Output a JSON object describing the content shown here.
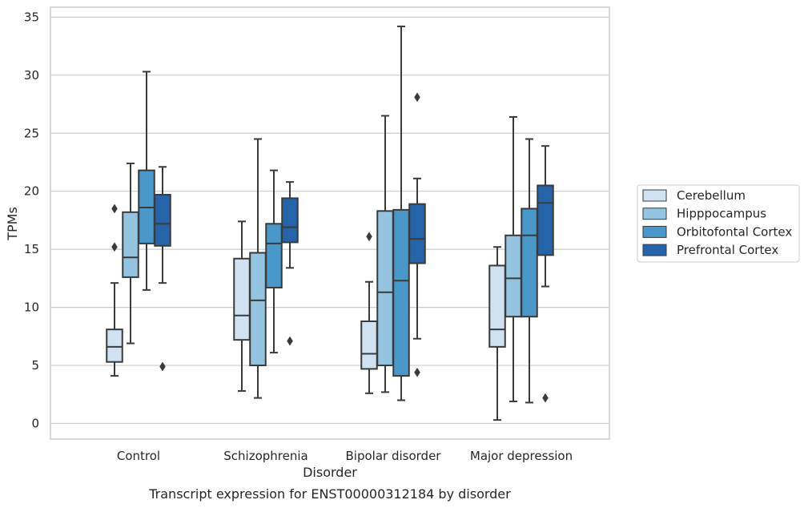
{
  "caption": "Transcript expression for ENST00000312184 by disorder",
  "colors": {
    "box_edge": "#3a3a3a",
    "grid": "#cccccc",
    "frame": "#cccccc",
    "series": [
      "#d0e1f2",
      "#94c4df",
      "#4a98c9",
      "#2664a9"
    ]
  },
  "chart_data": {
    "type": "box",
    "title": "",
    "xlabel": "Disorder",
    "ylabel": "TPMs",
    "ylim": [
      -1.3,
      36
    ],
    "yticks": [
      0,
      5,
      10,
      15,
      20,
      25,
      30,
      35
    ],
    "grid": "horizontal",
    "legend_position": "right",
    "categories": [
      "Control",
      "Schizophrenia",
      "Bipolar disorder",
      "Major depression"
    ],
    "series": [
      {
        "name": "Cerebellum",
        "boxes": [
          {
            "whisker_low": 4.1,
            "q1": 5.3,
            "median": 6.6,
            "q3": 8.1,
            "whisker_high": 12.1,
            "outliers": [
              15.2,
              18.5
            ]
          },
          {
            "whisker_low": 2.8,
            "q1": 7.2,
            "median": 9.3,
            "q3": 14.2,
            "whisker_high": 17.4,
            "outliers": []
          },
          {
            "whisker_low": 2.6,
            "q1": 4.7,
            "median": 6.0,
            "q3": 8.8,
            "whisker_high": 12.2,
            "outliers": [
              16.1
            ]
          },
          {
            "whisker_low": 0.3,
            "q1": 6.6,
            "median": 8.1,
            "q3": 13.6,
            "whisker_high": 15.2,
            "outliers": []
          }
        ]
      },
      {
        "name": "Hipppocampus",
        "boxes": [
          {
            "whisker_low": 6.9,
            "q1": 12.6,
            "median": 14.3,
            "q3": 18.2,
            "whisker_high": 22.4,
            "outliers": []
          },
          {
            "whisker_low": 2.2,
            "q1": 5.0,
            "median": 10.6,
            "q3": 14.7,
            "whisker_high": 24.5,
            "outliers": []
          },
          {
            "whisker_low": 2.7,
            "q1": 5.0,
            "median": 11.3,
            "q3": 18.3,
            "whisker_high": 26.5,
            "outliers": []
          },
          {
            "whisker_low": 1.9,
            "q1": 9.2,
            "median": 12.5,
            "q3": 16.2,
            "whisker_high": 26.4,
            "outliers": []
          }
        ]
      },
      {
        "name": "Orbitofontal Cortex",
        "boxes": [
          {
            "whisker_low": 11.5,
            "q1": 15.5,
            "median": 18.6,
            "q3": 21.8,
            "whisker_high": 30.3,
            "outliers": []
          },
          {
            "whisker_low": 6.1,
            "q1": 11.7,
            "median": 15.5,
            "q3": 17.2,
            "whisker_high": 21.8,
            "outliers": []
          },
          {
            "whisker_low": 2.0,
            "q1": 4.1,
            "median": 12.3,
            "q3": 18.4,
            "whisker_high": 34.2,
            "outliers": []
          },
          {
            "whisker_low": 1.8,
            "q1": 9.2,
            "median": 16.2,
            "q3": 18.5,
            "whisker_high": 24.5,
            "outliers": []
          }
        ]
      },
      {
        "name": "Prefrontal Cortex",
        "boxes": [
          {
            "whisker_low": 12.1,
            "q1": 15.3,
            "median": 17.2,
            "q3": 19.7,
            "whisker_high": 22.1,
            "outliers": [
              4.9
            ]
          },
          {
            "whisker_low": 13.4,
            "q1": 15.6,
            "median": 16.9,
            "q3": 19.4,
            "whisker_high": 20.8,
            "outliers": [
              7.1
            ]
          },
          {
            "whisker_low": 7.3,
            "q1": 13.8,
            "median": 15.9,
            "q3": 18.9,
            "whisker_high": 21.1,
            "outliers": [
              4.4,
              28.1
            ]
          },
          {
            "whisker_low": 11.8,
            "q1": 14.5,
            "median": 19.0,
            "q3": 20.5,
            "whisker_high": 23.9,
            "outliers": [
              2.2
            ]
          }
        ]
      }
    ]
  }
}
